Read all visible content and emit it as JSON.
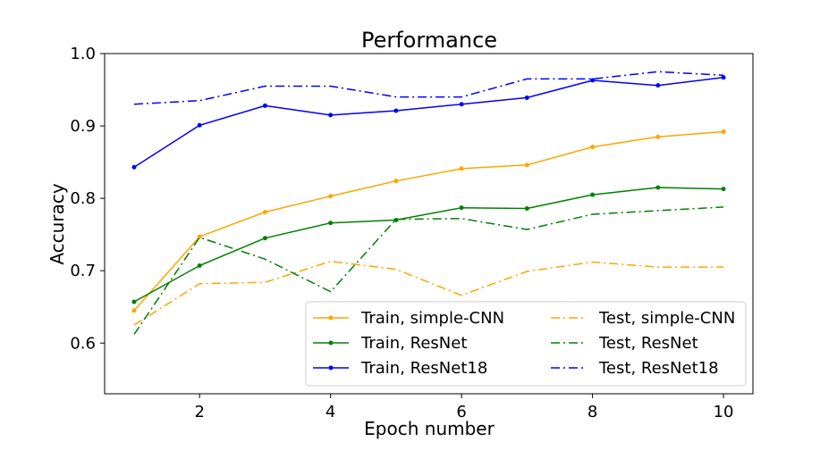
{
  "chart_data": {
    "type": "line",
    "title": "Performance",
    "xlabel": "Epoch number",
    "ylabel": "Accuracy",
    "xlim": [
      0.55,
      10.45
    ],
    "ylim": [
      0.53,
      1.0
    ],
    "xticks": [
      2,
      4,
      6,
      8,
      10
    ],
    "xtick_labels": [
      "2",
      "4",
      "6",
      "8",
      "10"
    ],
    "yticks": [
      0.6,
      0.7,
      0.8,
      0.9,
      1.0
    ],
    "ytick_labels": [
      "0.6",
      "0.7",
      "0.8",
      "0.9",
      "1.0"
    ],
    "grid": false,
    "legend_position": "lower-right",
    "legend_columns": 2,
    "x": [
      1,
      2,
      3,
      4,
      5,
      6,
      7,
      8,
      9,
      10
    ],
    "series": [
      {
        "name": "Train, simple-CNN",
        "color": "#FFA500",
        "style": "solid",
        "marker": "dot",
        "values": [
          0.645,
          0.747,
          0.781,
          0.803,
          0.824,
          0.841,
          0.846,
          0.871,
          0.885,
          0.892
        ]
      },
      {
        "name": "Train, ResNet",
        "color": "#008000",
        "style": "solid",
        "marker": "dot",
        "values": [
          0.657,
          0.707,
          0.745,
          0.766,
          0.77,
          0.787,
          0.786,
          0.805,
          0.815,
          0.813
        ]
      },
      {
        "name": "Train, ResNet18",
        "color": "#0000FF",
        "style": "solid",
        "marker": "dot",
        "values": [
          0.843,
          0.901,
          0.928,
          0.915,
          0.921,
          0.93,
          0.939,
          0.963,
          0.956,
          0.967
        ]
      },
      {
        "name": "Test, simple-CNN",
        "color": "#FFA500",
        "style": "dashdot",
        "marker": "none",
        "values": [
          0.625,
          0.682,
          0.684,
          0.713,
          0.702,
          0.666,
          0.699,
          0.712,
          0.705,
          0.705
        ]
      },
      {
        "name": "Test, ResNet",
        "color": "#008000",
        "style": "dashdot",
        "marker": "none",
        "values": [
          0.612,
          0.746,
          0.716,
          0.671,
          0.771,
          0.772,
          0.757,
          0.778,
          0.783,
          0.788
        ]
      },
      {
        "name": "Test, ResNet18",
        "color": "#0000FF",
        "style": "dashdot",
        "marker": "none",
        "values": [
          0.93,
          0.935,
          0.955,
          0.955,
          0.94,
          0.94,
          0.965,
          0.965,
          0.975,
          0.97
        ]
      }
    ]
  }
}
